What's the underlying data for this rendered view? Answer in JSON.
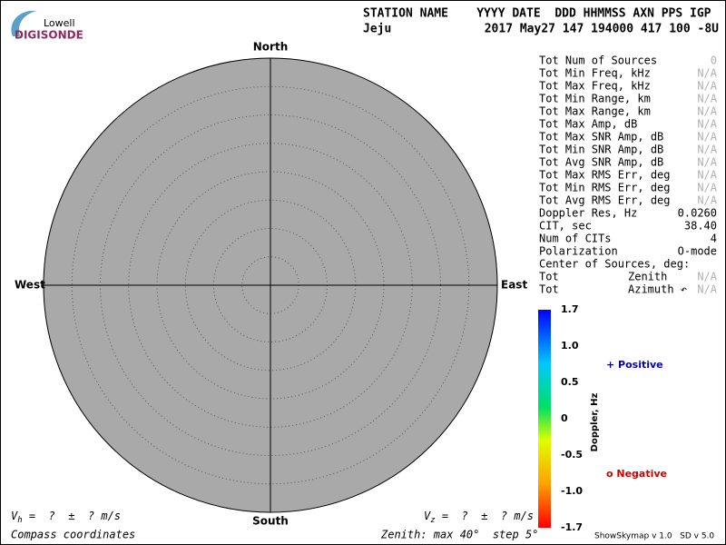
{
  "logo": {
    "top": "Lowell",
    "bottom": "DIGISONDE"
  },
  "header": {
    "labels": "STATION NAME    YYYY DATE  DDD HHMMSS AXN PPS IGP",
    "station": "Jeju",
    "values": "2017 May27 147 194000 417 100 -8U"
  },
  "compass": {
    "north": "North",
    "south": "South",
    "west": "West",
    "east": "East"
  },
  "stats": [
    {
      "label": "Tot Num of Sources",
      "value": "0",
      "na": true
    },
    {
      "label": "Tot Min Freq, kHz",
      "value": "N/A",
      "na": true
    },
    {
      "label": "Tot Max Freq, kHz",
      "value": "N/A",
      "na": true
    },
    {
      "label": "Tot Min Range, km",
      "value": "N/A",
      "na": true
    },
    {
      "label": "Tot Max Range, km",
      "value": "N/A",
      "na": true
    },
    {
      "label": "Tot Max Amp, dB",
      "value": "N/A",
      "na": true
    },
    {
      "label": "Tot Max SNR Amp, dB",
      "value": "N/A",
      "na": true
    },
    {
      "label": "Tot Min SNR Amp, dB",
      "value": "N/A",
      "na": true
    },
    {
      "label": "Tot Avg SNR Amp, dB",
      "value": "N/A",
      "na": true
    },
    {
      "label": "Tot Max RMS Err, deg",
      "value": "N/A",
      "na": true
    },
    {
      "label": "Tot Min RMS Err, deg",
      "value": "N/A",
      "na": true
    },
    {
      "label": "Tot Avg RMS Err, deg",
      "value": "N/A",
      "na": true
    },
    {
      "label": "Doppler Res, Hz",
      "value": "0.0260",
      "na": false
    },
    {
      "label": "CIT, sec",
      "value": "38.40",
      "na": false
    },
    {
      "label": "Num of CITs",
      "value": "4",
      "na": false
    },
    {
      "label": "Polarization",
      "value": "O-mode",
      "na": false
    },
    {
      "label": "Center of Sources, deg:",
      "na": false
    },
    {
      "label": "Tot",
      "mid": "Zenith",
      "value": "N/A",
      "na": true
    },
    {
      "label": "Tot",
      "mid": "Azimuth ↶",
      "value": "N/A",
      "na": true
    }
  ],
  "colorbar": {
    "title": "Doppler, Hz",
    "ticks": [
      "1.7",
      "1.0",
      "0.5",
      "0",
      "-0.5",
      "-1.0",
      "-1.7"
    ]
  },
  "legend": {
    "positive": "+ Positive",
    "negative": "o Negative"
  },
  "footer": {
    "vh": {
      "symbol": "V",
      "sub": "h",
      "rest": " =  ?  ±  ? m/s"
    },
    "vz": {
      "symbol": "V",
      "sub": "z",
      "rest": " =  ?  ±  ? m/s"
    },
    "coords": "Compass coordinates",
    "zenith": "Zenith: max 40°  step 5°",
    "version": "ShowSkymap v 1.0   SD v 5.0"
  }
}
